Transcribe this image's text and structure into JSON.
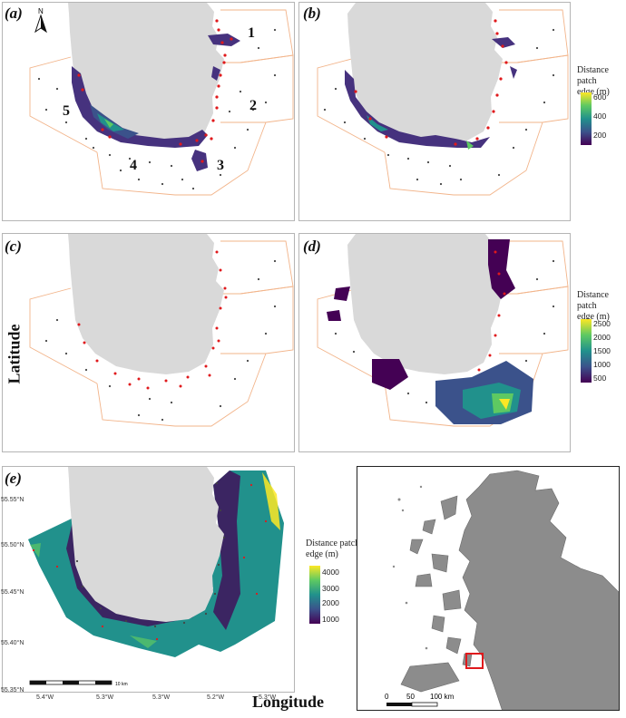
{
  "panels": {
    "a": {
      "label": "(a)",
      "areas": [
        "1",
        "2",
        "3",
        "4",
        "5"
      ]
    },
    "b": {
      "label": "(b)"
    },
    "c": {
      "label": "(c)"
    },
    "d": {
      "label": "(d)"
    },
    "e": {
      "label": "(e)"
    }
  },
  "north_arrow": "N",
  "legend_ab": {
    "title_line1": "Distance patch",
    "title_line2": "edge (m)",
    "ticks": [
      "600",
      "400",
      "200"
    ]
  },
  "legend_d": {
    "title_line1": "Distance patch",
    "title_line2": "edge (m)",
    "ticks": [
      "2500",
      "2000",
      "1500",
      "1000",
      "500"
    ]
  },
  "legend_e": {
    "title_line1": "Distance patch",
    "title_line2": "edge (m)",
    "ticks": [
      "4000",
      "3000",
      "2000",
      "1000"
    ]
  },
  "axes": {
    "ylabel": "Latitude",
    "xlabel": "Longitude"
  },
  "lat_ticks": [
    "55.55°N",
    "55.50°N",
    "55.45°N",
    "55.40°N",
    "55.35°N"
  ],
  "lon_ticks": [
    "5.4°W",
    "5.3°W",
    "5.3°W",
    "5.2°W",
    "5.3°W"
  ],
  "scalebar_e": "10 km",
  "inset_scale": {
    "zero": "0",
    "mid": "50",
    "end": "100 km"
  },
  "colors": {
    "land": "#d9d9d9",
    "points": "#444444",
    "red_points": "#e0191c",
    "boundary": "#f2b48a",
    "inset_land": "#8c8c8c",
    "highlight": "#e0191c"
  },
  "viridis": [
    "#440154",
    "#3b528b",
    "#21918c",
    "#5ec962",
    "#fde725"
  ]
}
